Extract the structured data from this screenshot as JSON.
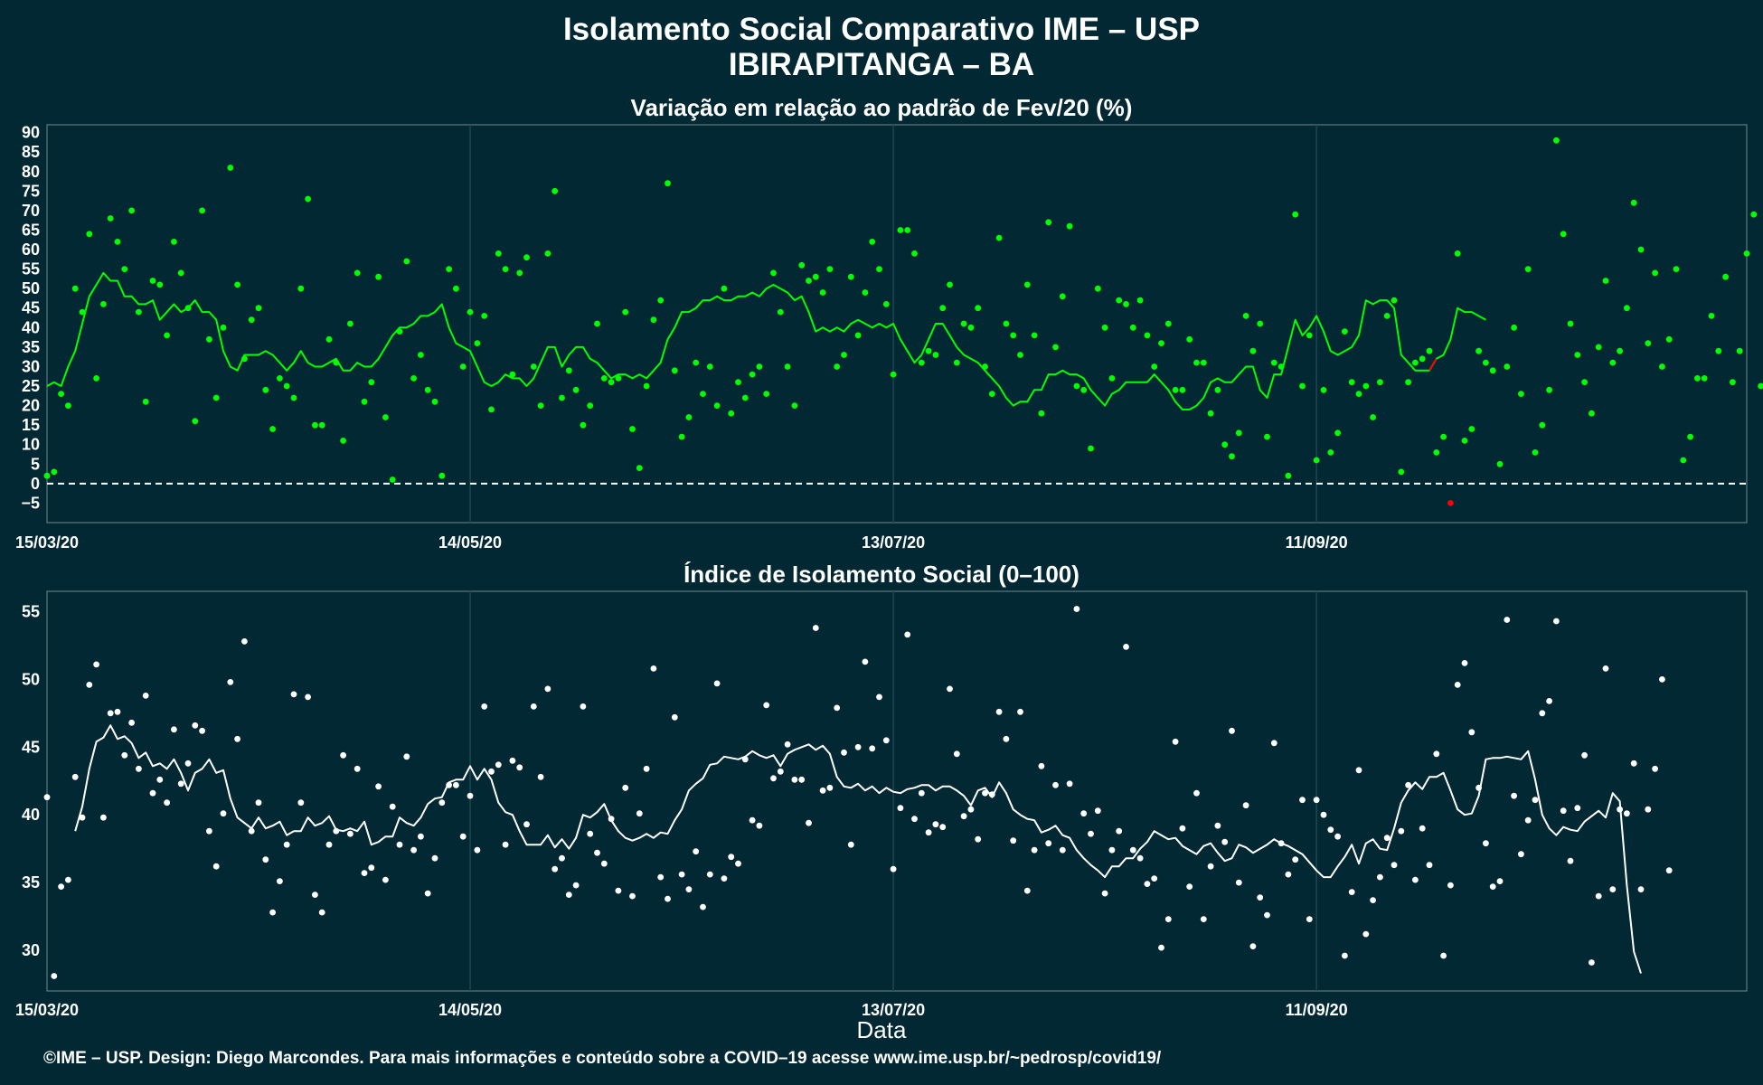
{
  "header": {
    "title_line1": "Isolamento Social Comparativo IME – USP",
    "title_line2": "IBIRAPITANGA – BA"
  },
  "footer": {
    "credit": "©IME – USP. Design: Diego Marcondes. Para mais informações e conteúdo sobre a COVID–19 acesse www.ime.usp.br/~pedrosp/covid19/"
  },
  "colors": {
    "background": "#022834",
    "variation": "#00ff00",
    "negative": "#ff0000",
    "index": "#ffffff",
    "grid": "#1f4650"
  },
  "chart_data": [
    {
      "type": "scatter",
      "title": "Variação em relação ao padrão de Fev/20 (%)",
      "xlabel": "",
      "ylabel": "",
      "x_ticks": [
        "15/03/20",
        "14/05/20",
        "13/07/20",
        "11/09/20"
      ],
      "x_range_days": [
        0,
        241
      ],
      "ylim": [
        -10,
        92
      ],
      "y_ticks": [
        -5,
        0,
        5,
        10,
        15,
        20,
        25,
        30,
        35,
        40,
        45,
        50,
        55,
        60,
        65,
        70,
        75,
        80,
        85,
        90
      ],
      "reference_line": 0,
      "grid": true,
      "series": [
        {
          "values": [
            2,
            3,
            23,
            20,
            50,
            44,
            64,
            27,
            46,
            68,
            62,
            55,
            70,
            44,
            21,
            52,
            51,
            38,
            62,
            54,
            45,
            16,
            70,
            37,
            22,
            40,
            81,
            51,
            32,
            42,
            45,
            24,
            14,
            27,
            25,
            22,
            50,
            73,
            15,
            15,
            37,
            31,
            11,
            41,
            54,
            21,
            26,
            53,
            17,
            1,
            39,
            57,
            27,
            33,
            24,
            21,
            2,
            55,
            50,
            30,
            44,
            36,
            43,
            19,
            59,
            55,
            28,
            54,
            58,
            30,
            20,
            59,
            75,
            22,
            29,
            24,
            15,
            20,
            41,
            27,
            26,
            27,
            44,
            14,
            4,
            25,
            42,
            47,
            77,
            29,
            12,
            17,
            31,
            23,
            30,
            20,
            50,
            18,
            26,
            22,
            28,
            30,
            23,
            54,
            44,
            30,
            20,
            56,
            52,
            53,
            49,
            55,
            30,
            33,
            53,
            38,
            49,
            62,
            55,
            46,
            28,
            65,
            65,
            59,
            31,
            34,
            33,
            45,
            51,
            31,
            41,
            40,
            45,
            30,
            23,
            63,
            41,
            38,
            33,
            51,
            38,
            18,
            67,
            35,
            48,
            66,
            25,
            24,
            9,
            50,
            40,
            27,
            47,
            46,
            40,
            47,
            38,
            30,
            36,
            41,
            24,
            24,
            37,
            31,
            31,
            18,
            24,
            10,
            7,
            13,
            43,
            34,
            41,
            12,
            31,
            30,
            2,
            69,
            25,
            38,
            6,
            24,
            8,
            13,
            39,
            26,
            23,
            25,
            17,
            26,
            43,
            47,
            3,
            26,
            31,
            32,
            34,
            8,
            12,
            -5,
            59,
            11,
            14,
            34,
            31,
            29,
            5,
            30,
            40,
            23,
            55,
            8,
            15,
            24,
            88,
            64,
            41,
            33,
            26,
            18,
            35,
            52,
            31,
            34,
            45,
            72,
            60,
            36,
            54,
            30,
            37,
            55,
            6,
            12,
            27,
            27,
            43,
            34,
            53,
            26,
            34,
            59,
            69,
            25
          ],
          "rolling_mean": [
            25,
            26,
            25,
            30,
            34,
            41,
            48,
            51,
            54,
            52,
            52,
            48,
            48,
            46,
            46,
            47,
            42,
            44,
            46,
            44,
            45,
            47,
            44,
            44,
            42,
            34,
            30,
            29,
            33,
            33,
            33,
            34,
            33,
            31,
            29,
            31,
            34,
            31,
            30,
            30,
            31,
            32,
            29,
            29,
            31,
            30,
            30,
            32,
            35,
            38,
            40,
            40,
            41,
            43,
            43,
            44,
            46,
            40,
            36,
            35,
            34,
            30,
            26,
            25,
            26,
            28,
            27,
            27,
            25,
            27,
            31,
            35,
            35,
            30,
            33,
            35,
            35,
            32,
            31,
            29,
            27,
            28,
            28,
            27,
            28,
            27,
            29,
            31,
            37,
            40,
            44,
            44,
            45,
            47,
            47,
            48,
            47,
            47,
            48,
            48,
            49,
            48,
            50,
            51,
            50,
            49,
            47,
            48,
            44,
            39,
            40,
            39,
            40,
            39,
            41,
            42,
            41,
            40,
            41,
            40,
            41,
            37,
            34,
            31,
            33,
            37,
            41,
            41,
            38,
            35,
            33,
            32,
            31,
            29,
            27,
            25,
            22,
            20,
            21,
            21,
            24,
            24,
            28,
            28,
            29,
            28,
            28,
            27,
            24,
            22,
            20,
            23,
            24,
            26,
            26,
            26,
            26,
            28,
            26,
            24,
            21,
            19,
            19,
            20,
            22,
            26,
            27,
            26,
            26,
            28,
            30,
            30,
            24,
            22,
            28,
            28,
            35,
            42,
            38,
            40,
            43,
            39,
            34,
            33,
            34,
            35,
            38,
            47,
            46,
            47,
            47,
            45,
            33,
            31,
            29,
            29,
            29,
            32,
            33,
            37,
            45,
            44,
            44,
            43,
            42
          ]
        }
      ]
    },
    {
      "type": "scatter",
      "title": "Índice de Isolamento Social (0–100)",
      "xlabel": "Data",
      "ylabel": "",
      "x_ticks": [
        "15/03/20",
        "14/05/20",
        "13/07/20",
        "11/09/20"
      ],
      "x_range_days": [
        0,
        241
      ],
      "ylim": [
        27,
        56.5
      ],
      "y_ticks": [
        30,
        35,
        40,
        45,
        50,
        55
      ],
      "grid": true,
      "series": [
        {
          "values": [
            41.3,
            28.1,
            34.7,
            35.2,
            42.8,
            39.8,
            49.6,
            51.1,
            39.8,
            47.5,
            47.6,
            44.4,
            46.8,
            43.4,
            48.8,
            41.6,
            42.6,
            40.9,
            46.3,
            42.3,
            43.8,
            46.6,
            46.2,
            38.8,
            36.2,
            40.1,
            49.8,
            45.6,
            52.8,
            38.8,
            40.9,
            36.7,
            32.8,
            35.1,
            37.8,
            48.9,
            40.9,
            48.7,
            34.1,
            32.8,
            37.8,
            38.8,
            44.4,
            38.6,
            43.4,
            35.7,
            36.1,
            42.1,
            35.2,
            40.6,
            37.8,
            44.3,
            37.4,
            38.4,
            34.2,
            36.8,
            40.9,
            42.2,
            42.2,
            38.4,
            41.4,
            37.4,
            48.0,
            43.2,
            43.7,
            37.8,
            44.0,
            43.5,
            39.3,
            48.0,
            42.8,
            49.3,
            36.0,
            36.8,
            34.1,
            34.8,
            48.0,
            38.6,
            37.2,
            36.4,
            39.7,
            34.4,
            42.0,
            34.0,
            40.1,
            43.4,
            50.8,
            35.4,
            33.8,
            47.2,
            35.6,
            34.5,
            37.3,
            33.2,
            35.6,
            49.7,
            35.3,
            36.9,
            36.4,
            44.1,
            39.6,
            39.2,
            48.1,
            42.7,
            43.2,
            45.2,
            42.6,
            42.6,
            39.4,
            53.8,
            41.8,
            42.0,
            47.9,
            44.6,
            37.8,
            45.0,
            51.3,
            44.9,
            48.7,
            45.5,
            36.0,
            40.5,
            53.3,
            39.7,
            41.6,
            38.7,
            39.3,
            39.1,
            49.3,
            44.5,
            39.9,
            40.4,
            38.2,
            41.6,
            41.5,
            47.6,
            45.6,
            38.1,
            47.6,
            34.4,
            37.4,
            43.6,
            37.9,
            42.2,
            37.4,
            42.3,
            55.2,
            40.1,
            38.6,
            40.3,
            34.2,
            37.4,
            38.8,
            52.4,
            37.4,
            36.8,
            34.9,
            35.3,
            30.2,
            32.3,
            45.4,
            39.0,
            34.7,
            41.6,
            32.3,
            36.2,
            39.2,
            38.0,
            46.2,
            35.0,
            40.7,
            30.3,
            33.9,
            32.6,
            45.3,
            37.9,
            35.6,
            36.7,
            41.1,
            32.3,
            41.1,
            40.0,
            38.9,
            38.4,
            29.6,
            34.3,
            43.3,
            31.2,
            33.7,
            35.4,
            38.3,
            36.3,
            38.8,
            42.2,
            35.2,
            39.0,
            36.3,
            44.5,
            29.6,
            34.8,
            49.6,
            51.2,
            46.1,
            42.0,
            37.9,
            34.7,
            35.1,
            54.4,
            41.4,
            37.1,
            39.6,
            41.1,
            47.5,
            48.4,
            54.3,
            40.3,
            36.6,
            40.5,
            44.4,
            29.1,
            34.0,
            50.8,
            34.5,
            40.4,
            40.1,
            43.8,
            34.5,
            40.4,
            43.4,
            50.0,
            35.9
          ],
          "rolling_mean": [
            null,
            null,
            null,
            null,
            38.8,
            40.6,
            43.4,
            45.4,
            45.7,
            46.6,
            45.6,
            45.8,
            45.3,
            44.2,
            44.6,
            43.6,
            43.8,
            43.4,
            44.1,
            43.1,
            41.8,
            43.1,
            43.4,
            44.1,
            43.1,
            43.3,
            41.2,
            39.8,
            39.4,
            39.0,
            39.8,
            39.0,
            39.2,
            39.5,
            38.5,
            38.8,
            38.8,
            39.8,
            39.2,
            39.4,
            39.9,
            38.9,
            38.8,
            39.0,
            38.8,
            39.5,
            37.8,
            38.0,
            38.4,
            38.4,
            39.8,
            39.4,
            39.2,
            39.8,
            40.8,
            41.2,
            41.3,
            42.4,
            42.6,
            42.6,
            43.6,
            42.6,
            43.4,
            42.6,
            40.9,
            40.2,
            40.0,
            38.8,
            37.8,
            37.8,
            37.8,
            38.5,
            37.6,
            38.2,
            37.5,
            38.3,
            40.0,
            39.8,
            40.2,
            40.8,
            39.6,
            38.8,
            38.3,
            38.1,
            38.3,
            38.6,
            38.3,
            38.7,
            38.6,
            39.6,
            40.4,
            41.8,
            42.3,
            42.7,
            43.7,
            43.8,
            44.3,
            44.2,
            44.1,
            44.3,
            44.7,
            44.4,
            44.2,
            44.4,
            43.6,
            44.5,
            44.8,
            45.0,
            45.2,
            44.8,
            45.1,
            44.5,
            42.8,
            42.1,
            42.0,
            42.3,
            41.8,
            42.1,
            41.6,
            42.0,
            41.7,
            41.6,
            41.9,
            42.0,
            42.2,
            42.2,
            41.8,
            42.1,
            42.1,
            41.8,
            41.4,
            40.7,
            41.8,
            42.0,
            41.3,
            42.4,
            41.6,
            40.4,
            40.0,
            39.7,
            39.6,
            38.7,
            38.9,
            39.2,
            38.5,
            38.3,
            37.4,
            36.8,
            36.3,
            35.9,
            35.4,
            36.2,
            36.2,
            36.8,
            36.8,
            37.5,
            38.0,
            38.8,
            38.5,
            38.2,
            38.3,
            37.7,
            37.4,
            37.1,
            37.7,
            37.9,
            37.2,
            36.6,
            36.8,
            37.8,
            37.6,
            37.2,
            37.5,
            37.8,
            38.2,
            37.9,
            37.7,
            37.4,
            37.1,
            36.5,
            35.9,
            35.4,
            35.4,
            36.2,
            36.9,
            37.8,
            36.4,
            37.9,
            38.2,
            37.5,
            37.4,
            39.0,
            40.9,
            41.8,
            42.4,
            41.9,
            42.8,
            42.8,
            43.1,
            41.8,
            40.4,
            40.0,
            40.1,
            41.4,
            44.1,
            44.2,
            44.2,
            44.3,
            44.2,
            44.1,
            44.7,
            42.6,
            40.0,
            39.0,
            38.5,
            39.1,
            38.9,
            38.8,
            39.5,
            39.9,
            40.3,
            39.8,
            41.6,
            41.0,
            34.8,
            29.9,
            28.3
          ]
        }
      ]
    }
  ]
}
